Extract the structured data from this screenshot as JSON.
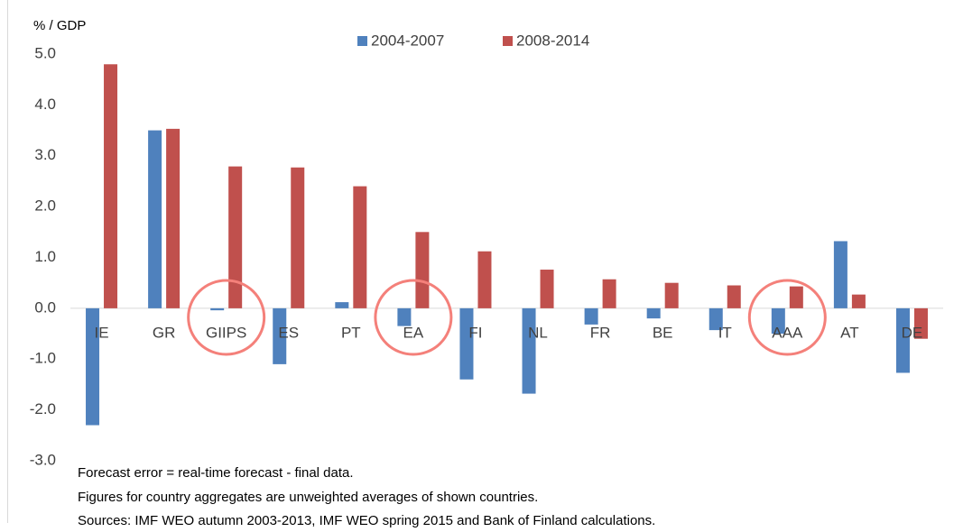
{
  "chart_data": {
    "type": "bar",
    "y_axis_label": "% / GDP",
    "categories": [
      "IE",
      "GR",
      "GIIPS",
      "ES",
      "PT",
      "EA",
      "FI",
      "NL",
      "FR",
      "BE",
      "IT",
      "AAA",
      "AT",
      "DE"
    ],
    "series": [
      {
        "name": "2004-2007",
        "color": "#4f81bd",
        "values": [
          -2.3,
          3.5,
          -0.04,
          -1.1,
          0.12,
          -0.35,
          -1.4,
          -1.68,
          -0.32,
          -0.2,
          -0.43,
          -0.5,
          1.32,
          -1.27
        ]
      },
      {
        "name": "2008-2014",
        "color": "#c0504d",
        "values": [
          4.8,
          3.53,
          2.79,
          2.77,
          2.4,
          1.5,
          1.12,
          0.76,
          0.57,
          0.5,
          0.45,
          0.43,
          0.27,
          -0.6
        ]
      }
    ],
    "ylim": [
      -3,
      5
    ],
    "yticks": [
      {
        "value": -3,
        "label": "-3.0"
      },
      {
        "value": -2,
        "label": "-2.0"
      },
      {
        "value": -1,
        "label": "-1.0"
      },
      {
        "value": 0,
        "label": "0.0"
      },
      {
        "value": 1,
        "label": "1.0"
      },
      {
        "value": 2,
        "label": "2.0"
      },
      {
        "value": 3,
        "label": "3.0"
      },
      {
        "value": 4,
        "label": "4.0"
      },
      {
        "value": 5,
        "label": "5.0"
      }
    ],
    "legend_position": "top",
    "notes": [
      "Forecast error = real-time forecast - final data.",
      "Figures for country aggregates are unweighted averages of shown countries.",
      "Sources: IMF WEO autumn 2003-2013, IMF WEO spring 2015 and Bank of Finland calculations."
    ]
  }
}
